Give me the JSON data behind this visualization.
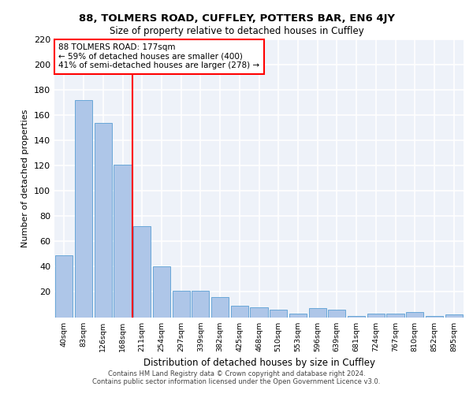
{
  "title1": "88, TOLMERS ROAD, CUFFLEY, POTTERS BAR, EN6 4JY",
  "title2": "Size of property relative to detached houses in Cuffley",
  "xlabel": "Distribution of detached houses by size in Cuffley",
  "ylabel": "Number of detached properties",
  "bar_labels": [
    "40sqm",
    "83sqm",
    "126sqm",
    "168sqm",
    "211sqm",
    "254sqm",
    "297sqm",
    "339sqm",
    "382sqm",
    "425sqm",
    "468sqm",
    "510sqm",
    "553sqm",
    "596sqm",
    "639sqm",
    "681sqm",
    "724sqm",
    "767sqm",
    "810sqm",
    "852sqm",
    "895sqm"
  ],
  "bar_values": [
    49,
    172,
    154,
    121,
    72,
    40,
    21,
    21,
    16,
    9,
    8,
    6,
    3,
    7,
    6,
    1,
    3,
    3,
    4,
    1,
    2
  ],
  "bar_color": "#aec6e8",
  "bar_edge_color": "#5a9fd4",
  "vline_color": "red",
  "annotation_text": "88 TOLMERS ROAD: 177sqm\n← 59% of detached houses are smaller (400)\n41% of semi-detached houses are larger (278) →",
  "annotation_box_color": "white",
  "annotation_box_edge": "red",
  "ylim": [
    0,
    220
  ],
  "yticks": [
    0,
    20,
    40,
    60,
    80,
    100,
    120,
    140,
    160,
    180,
    200,
    220
  ],
  "bg_color": "#eef2f9",
  "grid_color": "white",
  "footnote1": "Contains HM Land Registry data © Crown copyright and database right 2024.",
  "footnote2": "Contains public sector information licensed under the Open Government Licence v3.0."
}
